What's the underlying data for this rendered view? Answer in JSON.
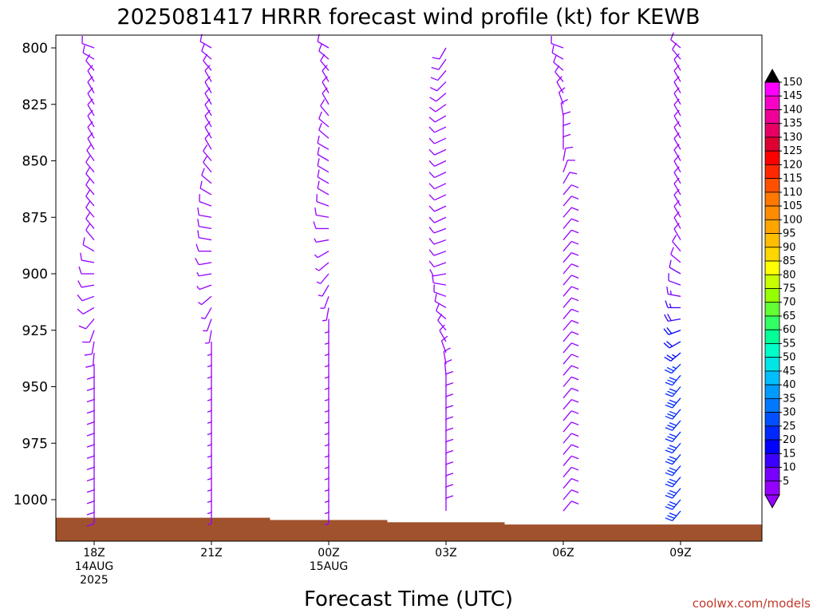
{
  "title": "2025081417 HRRR forecast wind profile (kt) for KEWB",
  "xlabel": "Forecast Time (UTC)",
  "credit": "coolwx.com/models",
  "chart_data": {
    "type": "wind_profile",
    "y_ticks": [
      "800",
      "825",
      "850",
      "875",
      "900",
      "925",
      "950",
      "975",
      "1000"
    ],
    "ylim": [
      800,
      1017
    ],
    "x_ticks": [
      {
        "label": "18Z",
        "sub1": "14AUG",
        "sub2": "2025",
        "hour": 0
      },
      {
        "label": "21Z",
        "sub1": "",
        "sub2": "",
        "hour": 3
      },
      {
        "label": "00Z",
        "sub1": "15AUG",
        "sub2": "",
        "hour": 6
      },
      {
        "label": "03Z",
        "sub1": "",
        "sub2": "",
        "hour": 9
      },
      {
        "label": "06Z",
        "sub1": "",
        "sub2": "",
        "hour": 12
      },
      {
        "label": "09Z",
        "sub1": "",
        "sub2": "",
        "hour": 15
      }
    ],
    "xlim": [
      -1.5,
      17.5
    ],
    "barb_levels": [
      800,
      805,
      810,
      815,
      820,
      825,
      830,
      835,
      840,
      845,
      850,
      855,
      860,
      865,
      870,
      875,
      880,
      885,
      890,
      895,
      900,
      905,
      910,
      915,
      920,
      925,
      930,
      935,
      940,
      945,
      950,
      955,
      960,
      965,
      970,
      975,
      980,
      985,
      990,
      995,
      1000,
      1005
    ],
    "profiles": [
      {
        "hour": 0,
        "surface": 1008,
        "dir": [
          290,
          300,
          320,
          330,
          330,
          330,
          330,
          330,
          330,
          330,
          325,
          320,
          320,
          320,
          320,
          320,
          320,
          320,
          300,
          280,
          270,
          260,
          250,
          240,
          220,
          200,
          190,
          185,
          180,
          180,
          180,
          180,
          180,
          180,
          180,
          180,
          180,
          180,
          180,
          180,
          180,
          180
        ],
        "spd": [
          8,
          8,
          8,
          8,
          8,
          8,
          8,
          8,
          8,
          8,
          8,
          8,
          8,
          8,
          8,
          8,
          8,
          8,
          8,
          8,
          8,
          8,
          8,
          8,
          8,
          8,
          8,
          8,
          8,
          8,
          8,
          8,
          8,
          8,
          8,
          8,
          8,
          8,
          8,
          8,
          8,
          8
        ]
      },
      {
        "hour": 3,
        "surface": 1008,
        "dir": [
          300,
          310,
          320,
          330,
          330,
          330,
          330,
          330,
          330,
          330,
          320,
          320,
          310,
          300,
          290,
          280,
          280,
          280,
          270,
          260,
          260,
          250,
          230,
          210,
          200,
          190,
          180,
          180,
          180,
          180,
          180,
          180,
          180,
          180,
          180,
          180,
          180,
          180,
          180,
          180,
          180,
          180
        ],
        "spd": [
          8,
          8,
          8,
          8,
          8,
          8,
          8,
          8,
          8,
          8,
          8,
          8,
          8,
          8,
          8,
          8,
          8,
          8,
          8,
          8,
          6,
          4,
          3,
          3,
          3,
          3,
          3,
          4,
          5,
          5,
          5,
          5,
          5,
          5,
          5,
          5,
          5,
          5,
          5,
          5,
          5,
          5
        ]
      },
      {
        "hour": 6,
        "surface": 1009,
        "dir": [
          300,
          310,
          320,
          330,
          330,
          330,
          320,
          310,
          310,
          300,
          300,
          300,
          300,
          300,
          290,
          280,
          270,
          260,
          240,
          230,
          220,
          210,
          200,
          190,
          180,
          180,
          180,
          180,
          180,
          180,
          180,
          180,
          180,
          180,
          180,
          180,
          180,
          180,
          180,
          180,
          180,
          180
        ],
        "spd": [
          8,
          8,
          8,
          8,
          8,
          8,
          8,
          8,
          8,
          8,
          8,
          8,
          8,
          8,
          8,
          8,
          8,
          6,
          5,
          4,
          3,
          3,
          3,
          3,
          3,
          3,
          3,
          3,
          4,
          5,
          5,
          5,
          5,
          5,
          5,
          5,
          5,
          5,
          5,
          5,
          5,
          5
        ]
      },
      {
        "hour": 9,
        "surface": 1010,
        "dir": [
          210,
          215,
          220,
          225,
          230,
          235,
          240,
          245,
          245,
          245,
          245,
          245,
          245,
          245,
          245,
          245,
          250,
          250,
          250,
          250,
          260,
          280,
          290,
          300,
          310,
          320,
          330,
          340,
          350,
          355,
          0,
          0,
          0,
          0,
          0,
          0,
          0,
          0,
          0,
          0,
          0,
          0
        ],
        "spd": [
          8,
          8,
          8,
          8,
          8,
          8,
          8,
          8,
          8,
          8,
          8,
          8,
          8,
          8,
          8,
          8,
          8,
          8,
          8,
          8,
          8,
          8,
          8,
          8,
          8,
          8,
          8,
          8,
          8,
          8,
          8,
          8,
          8,
          8,
          8,
          8,
          8,
          8,
          8,
          8,
          8,
          8
        ]
      },
      {
        "hour": 12,
        "surface": 1011,
        "dir": [
          290,
          300,
          310,
          320,
          330,
          340,
          350,
          0,
          0,
          0,
          10,
          20,
          30,
          40,
          40,
          40,
          40,
          40,
          40,
          40,
          40,
          40,
          40,
          40,
          40,
          40,
          40,
          40,
          40,
          40,
          40,
          40,
          40,
          40,
          40,
          40,
          40,
          40,
          40,
          40,
          40,
          40
        ],
        "spd": [
          8,
          8,
          8,
          8,
          8,
          8,
          8,
          8,
          8,
          8,
          8,
          8,
          8,
          8,
          8,
          8,
          8,
          8,
          8,
          8,
          8,
          8,
          8,
          8,
          8,
          8,
          8,
          8,
          8,
          8,
          8,
          8,
          8,
          8,
          8,
          8,
          8,
          8,
          8,
          8,
          8,
          8
        ]
      },
      {
        "hour": 15,
        "surface": 1011,
        "dir": [
          310,
          320,
          330,
          330,
          330,
          330,
          330,
          330,
          330,
          330,
          330,
          330,
          330,
          330,
          330,
          330,
          330,
          330,
          320,
          310,
          300,
          290,
          280,
          270,
          260,
          250,
          240,
          230,
          225,
          220,
          220,
          220,
          220,
          220,
          220,
          220,
          220,
          220,
          220,
          220,
          220,
          220
        ],
        "spd": [
          8,
          8,
          8,
          8,
          8,
          8,
          8,
          8,
          8,
          8,
          8,
          8,
          8,
          8,
          8,
          8,
          8,
          8,
          8,
          8,
          10,
          12,
          14,
          16,
          18,
          20,
          22,
          24,
          26,
          28,
          28,
          28,
          28,
          28,
          28,
          28,
          28,
          28,
          28,
          28,
          28,
          28
        ]
      }
    ],
    "colorbar": {
      "labels": [
        "150",
        "145",
        "140",
        "135",
        "130",
        "125",
        "120",
        "115",
        "110",
        "105",
        "100",
        "95",
        "90",
        "85",
        "80",
        "75",
        "70",
        "65",
        "60",
        "55",
        "50",
        "45",
        "40",
        "35",
        "30",
        "25",
        "20",
        "15",
        "10",
        "5"
      ],
      "colors": [
        "#ff00ff",
        "#f700c8",
        "#ef0096",
        "#e60064",
        "#de0032",
        "#ff0000",
        "#ff2800",
        "#ff5000",
        "#ff7800",
        "#ff8c00",
        "#ffa500",
        "#ffbe00",
        "#ffd700",
        "#ffff00",
        "#c8ff00",
        "#96ff00",
        "#64ff32",
        "#32ff64",
        "#00ff96",
        "#00ffc8",
        "#00e6e6",
        "#00bfff",
        "#009bff",
        "#0078ff",
        "#0050ff",
        "#0028ff",
        "#0000ff",
        "#3c00ff",
        "#7800ff",
        "#9600ff"
      ]
    },
    "surface_color": "#a0522d",
    "grid": false
  }
}
